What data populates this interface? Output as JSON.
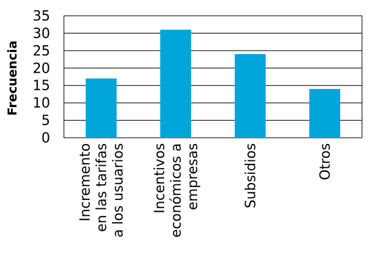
{
  "chart_data": {
    "type": "bar",
    "categories": [
      [
        "Incremento",
        "en las tarifas",
        "a los usuarios"
      ],
      [
        "Incentivos",
        "económicos a",
        "empresas"
      ],
      [
        "Subsidios"
      ],
      [
        "Otros"
      ]
    ],
    "values": [
      17,
      31,
      24,
      14
    ],
    "ylabel": "Frecuencia",
    "xlabel": "",
    "ylim": [
      0,
      35
    ],
    "yticks": [
      0,
      5,
      10,
      15,
      20,
      25,
      30,
      35
    ],
    "grid": true,
    "bar_color": "#00A6DA",
    "grid_color": "#000000"
  }
}
